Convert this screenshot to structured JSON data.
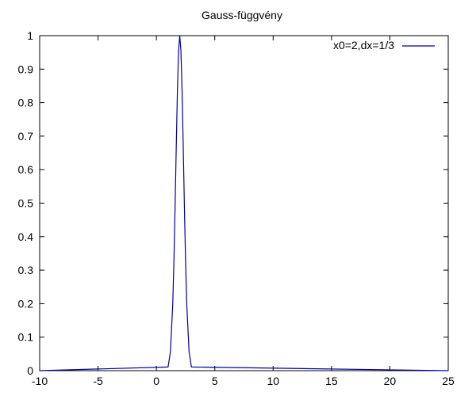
{
  "chart_data": {
    "type": "line",
    "title": "Gauss-függvény",
    "xlabel": "",
    "ylabel": "",
    "xlim": [
      -10,
      25
    ],
    "ylim": [
      0,
      1
    ],
    "grid": false,
    "legend_position": "top-right",
    "x_ticks": [
      -10,
      -5,
      0,
      5,
      10,
      15,
      20,
      25
    ],
    "y_ticks": [
      0,
      0.1,
      0.2,
      0.3,
      0.4,
      0.5,
      0.6,
      0.7,
      0.8,
      0.9,
      1
    ],
    "x_tick_labels": [
      "-10",
      "-5",
      "0",
      "5",
      "10",
      "15",
      "20",
      "25"
    ],
    "y_tick_labels": [
      "0",
      "0.1",
      "0.2",
      "0.3",
      "0.4",
      "0.5",
      "0.6",
      "0.7",
      "0.8",
      "0.9",
      "1"
    ],
    "series": [
      {
        "name": "x0=2,dx=1/3",
        "color": "#0000a0",
        "x": [
          -10,
          1.0,
          1.2,
          1.4,
          1.5,
          1.6,
          1.7,
          1.8,
          1.9,
          2.0,
          2.1,
          2.2,
          2.3,
          2.4,
          2.5,
          2.6,
          2.8,
          3.0,
          25
        ],
        "y": [
          0,
          0.011,
          0.056,
          0.198,
          0.325,
          0.487,
          0.667,
          0.835,
          0.956,
          1.0,
          0.956,
          0.835,
          0.667,
          0.487,
          0.325,
          0.198,
          0.056,
          0.011,
          0
        ]
      }
    ]
  }
}
